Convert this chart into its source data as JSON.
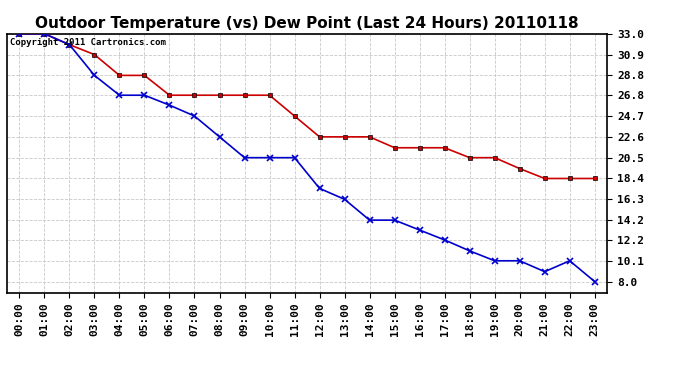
{
  "title": "Outdoor Temperature (vs) Dew Point (Last 24 Hours) 20110118",
  "copyright": "Copyright 2011 Cartronics.com",
  "x_labels": [
    "00:00",
    "01:00",
    "02:00",
    "03:00",
    "04:00",
    "05:00",
    "06:00",
    "07:00",
    "08:00",
    "09:00",
    "10:00",
    "11:00",
    "12:00",
    "13:00",
    "14:00",
    "15:00",
    "16:00",
    "17:00",
    "18:00",
    "19:00",
    "20:00",
    "21:00",
    "22:00",
    "23:00"
  ],
  "temp_data": [
    33.0,
    33.0,
    31.9,
    30.9,
    28.8,
    28.8,
    26.8,
    26.8,
    26.8,
    26.8,
    26.8,
    24.7,
    22.6,
    22.6,
    22.6,
    21.5,
    21.5,
    21.5,
    20.5,
    20.5,
    19.4,
    18.4,
    18.4,
    18.4
  ],
  "dew_data": [
    33.0,
    33.0,
    31.9,
    28.8,
    26.8,
    26.8,
    25.8,
    24.7,
    22.6,
    20.5,
    20.5,
    20.5,
    17.4,
    16.3,
    14.2,
    14.2,
    13.2,
    12.2,
    11.1,
    10.1,
    10.1,
    9.0,
    10.1,
    8.0
  ],
  "temp_color": "#cc0000",
  "dew_color": "#0000cc",
  "ylim_min": 6.9,
  "ylim_max": 33.0,
  "yticks": [
    33.0,
    30.9,
    28.8,
    26.8,
    24.7,
    22.6,
    20.5,
    18.4,
    16.3,
    14.2,
    12.2,
    10.1,
    8.0
  ],
  "background_color": "#ffffff",
  "grid_color": "#c8c8c8",
  "title_fontsize": 11,
  "copyright_fontsize": 6.5,
  "tick_fontsize": 8,
  "fig_width": 6.9,
  "fig_height": 3.75
}
